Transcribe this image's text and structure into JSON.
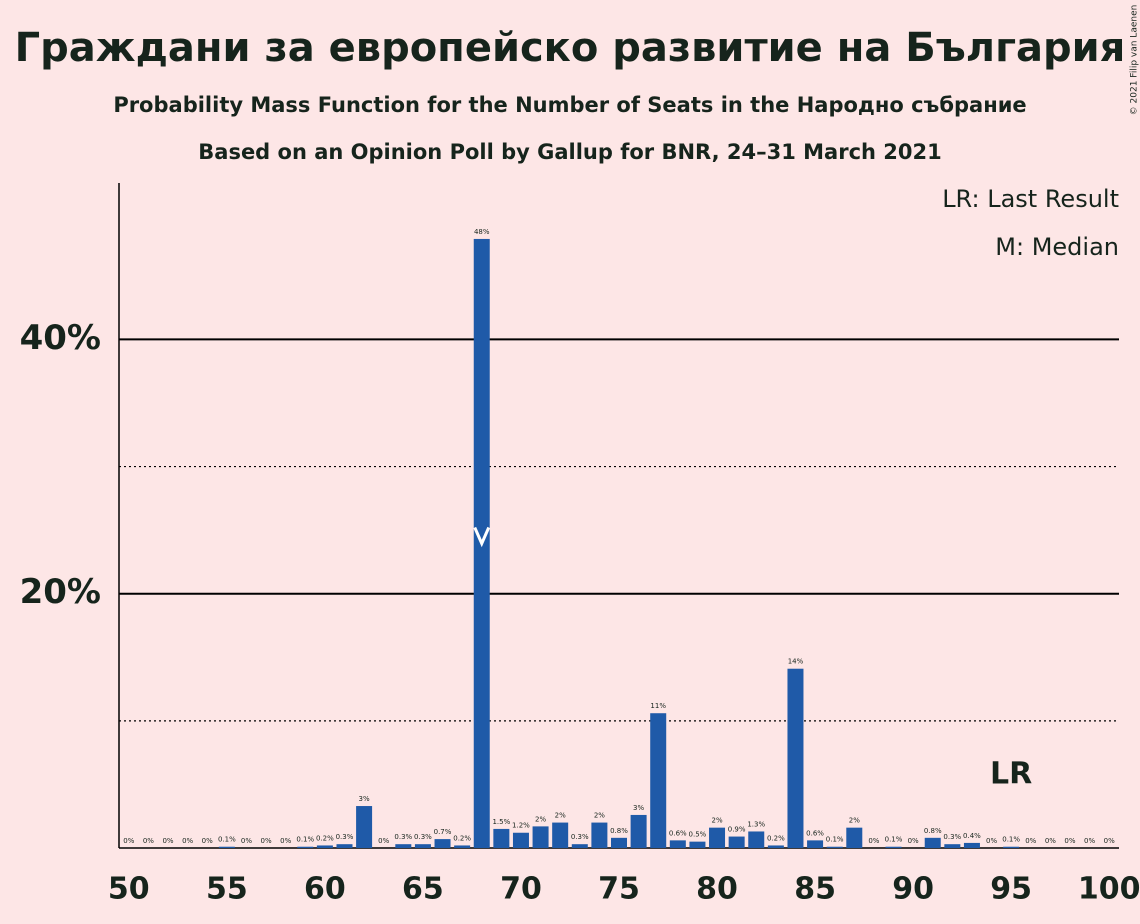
{
  "chart_data": {
    "type": "bar",
    "title": "Граждани за европейско развитие на България",
    "subtitle": "Probability Mass Function for the Number of Seats in the Народно събрание",
    "subtitle2": "Based on an Opinion Poll by Gallup for BNR, 24–31 March 2021",
    "copyright": "© 2021 Filip van Laenen",
    "legend": [
      "LR: Last Result",
      "M: Median"
    ],
    "x": [
      50,
      51,
      52,
      53,
      54,
      55,
      56,
      57,
      58,
      59,
      60,
      61,
      62,
      63,
      64,
      65,
      66,
      67,
      68,
      69,
      70,
      71,
      72,
      73,
      74,
      75,
      76,
      77,
      78,
      79,
      80,
      81,
      82,
      83,
      84,
      85,
      86,
      87,
      88,
      89,
      90,
      91,
      92,
      93,
      94,
      95,
      96,
      97,
      98,
      99,
      100
    ],
    "values": [
      0,
      0,
      0,
      0,
      0,
      0.1,
      0,
      0,
      0,
      0.1,
      0.2,
      0.3,
      3.3,
      0,
      0.3,
      0.3,
      0.7,
      0.2,
      47.9,
      1.5,
      1.2,
      1.7,
      2.0,
      0.3,
      2.0,
      0.8,
      2.6,
      10.6,
      0.6,
      0.5,
      1.6,
      0.9,
      1.3,
      0.2,
      14.1,
      0.6,
      0.1,
      1.6,
      0,
      0.1,
      0,
      0.8,
      0.3,
      0.4,
      0,
      0.1,
      0,
      0,
      0,
      0,
      0
    ],
    "value_labels": [
      "0%",
      "0%",
      "0%",
      "0%",
      "0%",
      "0.1%",
      "0%",
      "0%",
      "0%",
      "0.1%",
      "0.2%",
      "0.3%",
      "3%",
      "0%",
      "0.3%",
      "0.3%",
      "0.7%",
      "0.2%",
      "48%",
      "1.5%",
      "1.2%",
      "2%",
      "2%",
      "0.3%",
      "2%",
      "0.8%",
      "3%",
      "11%",
      "0.6%",
      "0.5%",
      "2%",
      "0.9%",
      "1.3%",
      "0.2%",
      "14%",
      "0.6%",
      "0.1%",
      "2%",
      "0%",
      "0.1%",
      "0%",
      "0.8%",
      "0.3%",
      "0.4%",
      "0%",
      "0.1%",
      "0%",
      "0%",
      "0%",
      "0%",
      "0%"
    ],
    "color": "#1f5aa8",
    "xlim": [
      49.5,
      100.5
    ],
    "xticks": [
      50,
      55,
      60,
      65,
      70,
      75,
      80,
      85,
      90,
      95,
      100
    ],
    "ylim": [
      0,
      52.3
    ],
    "yticks": [
      {
        "value": 20,
        "label": "20%"
      },
      {
        "value": 40,
        "label": "40%"
      }
    ],
    "minor_yticks": [
      10,
      30
    ],
    "median": 68,
    "last_result": 95,
    "last_result_label": "LR"
  }
}
